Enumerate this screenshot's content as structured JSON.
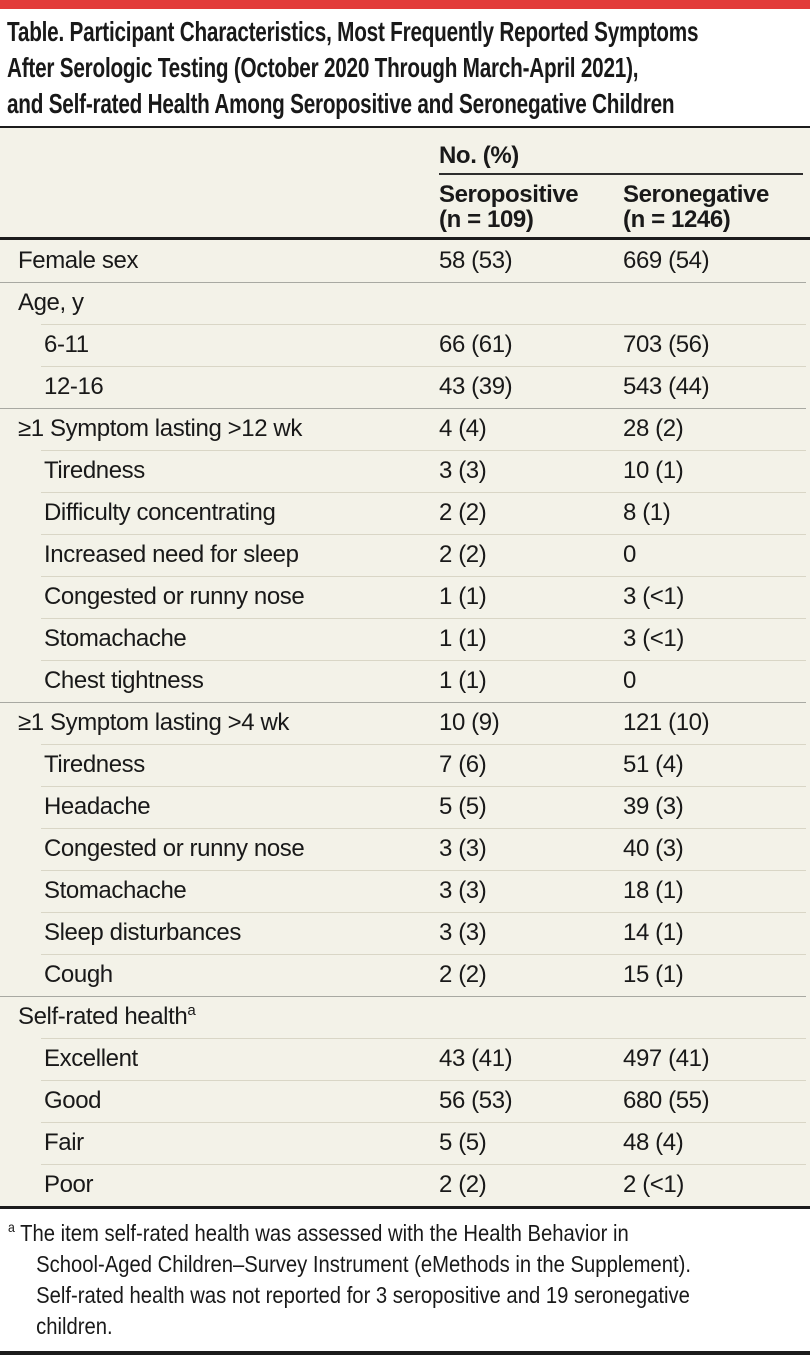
{
  "accent_color": "#e23b3a",
  "title": {
    "lines": [
      "Table. Participant Characteristics, Most Frequently Reported Symptoms",
      "After Serologic Testing (October 2020 Through March-April 2021),",
      "and Self-rated Health Among Seropositive and Seronegative Children"
    ]
  },
  "header": {
    "group_label": "No. (%)",
    "columns": [
      {
        "label": "Seropositive",
        "n": "(n = 109)"
      },
      {
        "label": "Seronegative",
        "n": "(n = 1246)"
      }
    ]
  },
  "rows": [
    {
      "label": "Female sex",
      "indent": 0,
      "sep": "none",
      "values": [
        "58 (53)",
        "669 (54)"
      ]
    },
    {
      "label": "Age, y",
      "indent": 0,
      "sep": "full",
      "values": [
        "",
        ""
      ]
    },
    {
      "label": "6-11",
      "indent": 1,
      "sep": "indent",
      "values": [
        "66 (61)",
        "703 (56)"
      ]
    },
    {
      "label": "12-16",
      "indent": 1,
      "sep": "indent",
      "values": [
        "43 (39)",
        "543 (44)"
      ]
    },
    {
      "label": "≥1 Symptom lasting >12 wk",
      "indent": 0,
      "sep": "full",
      "values": [
        "4 (4)",
        "28 (2)"
      ]
    },
    {
      "label": "Tiredness",
      "indent": 1,
      "sep": "indent",
      "values": [
        "3 (3)",
        "10 (1)"
      ]
    },
    {
      "label": "Difficulty concentrating",
      "indent": 1,
      "sep": "indent",
      "values": [
        "2 (2)",
        "8 (1)"
      ]
    },
    {
      "label": "Increased need for sleep",
      "indent": 1,
      "sep": "indent",
      "values": [
        "2 (2)",
        "0"
      ]
    },
    {
      "label": "Congested or runny nose",
      "indent": 1,
      "sep": "indent",
      "values": [
        "1 (1)",
        "3 (<1)"
      ]
    },
    {
      "label": "Stomachache",
      "indent": 1,
      "sep": "indent",
      "values": [
        "1 (1)",
        "3 (<1)"
      ]
    },
    {
      "label": "Chest tightness",
      "indent": 1,
      "sep": "indent",
      "values": [
        "1 (1)",
        "0"
      ]
    },
    {
      "label": "≥1 Symptom lasting >4 wk",
      "indent": 0,
      "sep": "full",
      "values": [
        "10 (9)",
        "121 (10)"
      ]
    },
    {
      "label": "Tiredness",
      "indent": 1,
      "sep": "indent",
      "values": [
        "7 (6)",
        "51 (4)"
      ]
    },
    {
      "label": "Headache",
      "indent": 1,
      "sep": "indent",
      "values": [
        "5 (5)",
        "39 (3)"
      ]
    },
    {
      "label": "Congested or runny nose",
      "indent": 1,
      "sep": "indent",
      "values": [
        "3 (3)",
        "40 (3)"
      ]
    },
    {
      "label": "Stomachache",
      "indent": 1,
      "sep": "indent",
      "values": [
        "3 (3)",
        "18 (1)"
      ]
    },
    {
      "label": "Sleep disturbances",
      "indent": 1,
      "sep": "indent",
      "values": [
        "3 (3)",
        "14 (1)"
      ]
    },
    {
      "label": "Cough",
      "indent": 1,
      "sep": "indent",
      "values": [
        "2 (2)",
        "15 (1)"
      ]
    },
    {
      "label": "Self-rated health",
      "sup": "a",
      "indent": 0,
      "sep": "full",
      "values": [
        "",
        ""
      ]
    },
    {
      "label": "Excellent",
      "indent": 1,
      "sep": "indent",
      "values": [
        "43 (41)",
        "497 (41)"
      ]
    },
    {
      "label": "Good",
      "indent": 1,
      "sep": "indent",
      "values": [
        "56 (53)",
        "680 (55)"
      ]
    },
    {
      "label": "Fair",
      "indent": 1,
      "sep": "indent",
      "values": [
        "5 (5)",
        "48 (4)"
      ]
    },
    {
      "label": "Poor",
      "indent": 1,
      "sep": "indent",
      "values": [
        "2 (2)",
        "2 (<1)"
      ]
    }
  ],
  "footnote": {
    "marker": "a",
    "lines": [
      "The item self-rated health was assessed with the Health Behavior in",
      "School-Aged Children–Survey Instrument (eMethods in the Supplement).",
      "Self-rated health was not reported for 3 seropositive and 19 seronegative",
      "children."
    ]
  }
}
